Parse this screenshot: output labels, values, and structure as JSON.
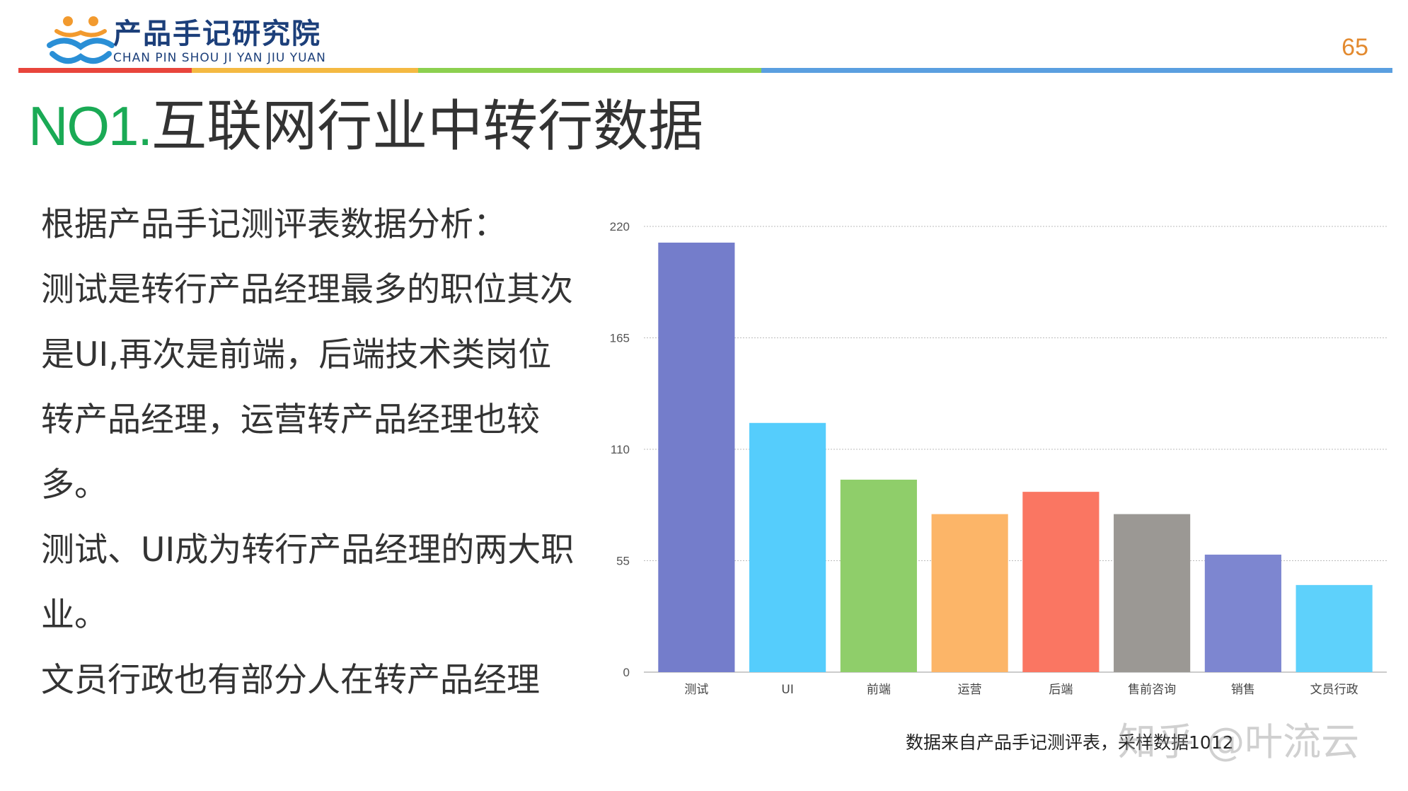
{
  "header": {
    "logo_title": "产品手记研究院",
    "logo_subtitle": "CHAN PIN SHOU JI YAN JIU YUAN",
    "page_number": "65",
    "rainbow": [
      "#e8453c",
      "#f4b942",
      "#8cd04f",
      "#5a9fe0"
    ]
  },
  "title": {
    "prefix": "NO1.",
    "main": "互联网行业中转行数据"
  },
  "analysis": {
    "paragraphs": [
      "根据产品手记测评表数据分析：",
      "测试是转行产品经理最多的职位其次是UI,再次是前端，后端技术类岗位转产品经理，运营转产品经理也较多。",
      "测试、UI成为转行产品经理的两大职业。",
      "文员行政也有部分人在转产品经理"
    ]
  },
  "chart_data": {
    "type": "bar",
    "categories": [
      "测试",
      "UI",
      "前端",
      "运营",
      "后端",
      "售前咨询",
      "销售",
      "文员行政"
    ],
    "values": [
      212,
      123,
      95,
      78,
      89,
      78,
      58,
      43
    ],
    "colors": [
      "#747dcb",
      "#55cdfc",
      "#8fce6a",
      "#fcb568",
      "#fa7662",
      "#9b9894",
      "#7d86d0",
      "#5ed1fb"
    ],
    "yticks": [
      0,
      55,
      110,
      165,
      220
    ],
    "ylim": [
      0,
      220
    ],
    "grid": true,
    "title": "",
    "xlabel": "",
    "ylabel": ""
  },
  "footer": {
    "source": "数据来自产品手记测评表，采样数据1012",
    "watermark": "知乎 @叶流云"
  }
}
